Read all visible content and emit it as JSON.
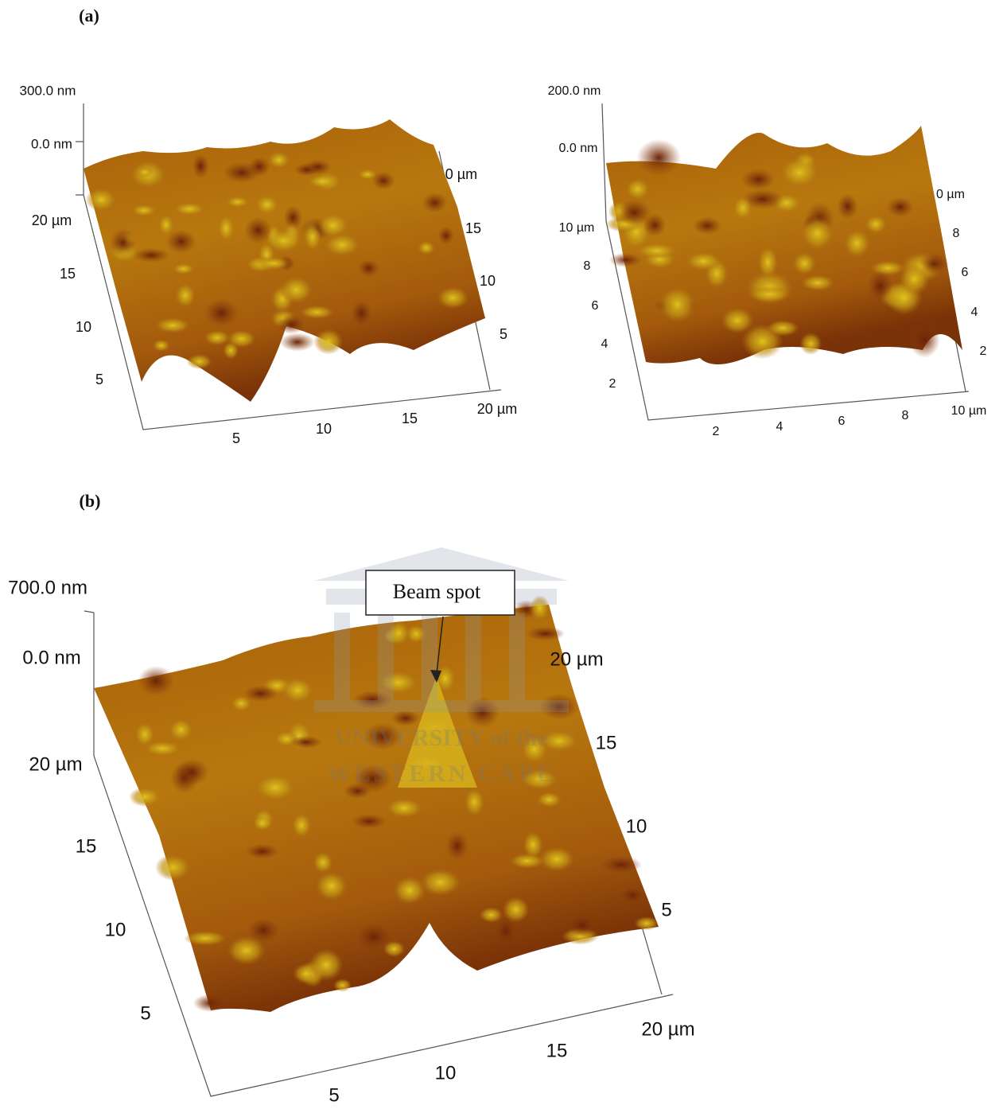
{
  "figure": {
    "panel_a": {
      "label": "(a)",
      "left": {
        "z_top": "300.0 nm",
        "z_zero": "0.0 nm",
        "y_ticks": [
          "20 µm",
          "15",
          "10",
          "5"
        ],
        "x_ticks": [
          "5",
          "10",
          "15",
          "20 µm"
        ],
        "back_ticks": [
          "0 µm",
          "15",
          "10",
          "5"
        ]
      },
      "right": {
        "z_top": "200.0 nm",
        "z_zero": "0.0 nm",
        "y_ticks": [
          "10 µm",
          "8",
          "6",
          "4",
          "2"
        ],
        "x_ticks": [
          "2",
          "4",
          "6",
          "8",
          "10 µm"
        ],
        "back_ticks": [
          "0 µm",
          "8",
          "6",
          "4",
          "2"
        ]
      }
    },
    "panel_b": {
      "label": "(b)",
      "z_top": "700.0 nm",
      "z_zero": "0.0 nm",
      "y_ticks": [
        "20 µm",
        "15",
        "10",
        "5"
      ],
      "x_ticks": [
        "5",
        "10",
        "15",
        "20 µm"
      ],
      "back_ticks": [
        "20 µm",
        "15",
        "10",
        "5"
      ],
      "annotation": "Beam spot",
      "watermark": [
        "UNIVERSITY of the",
        "WESTERN CAPE"
      ]
    }
  }
}
